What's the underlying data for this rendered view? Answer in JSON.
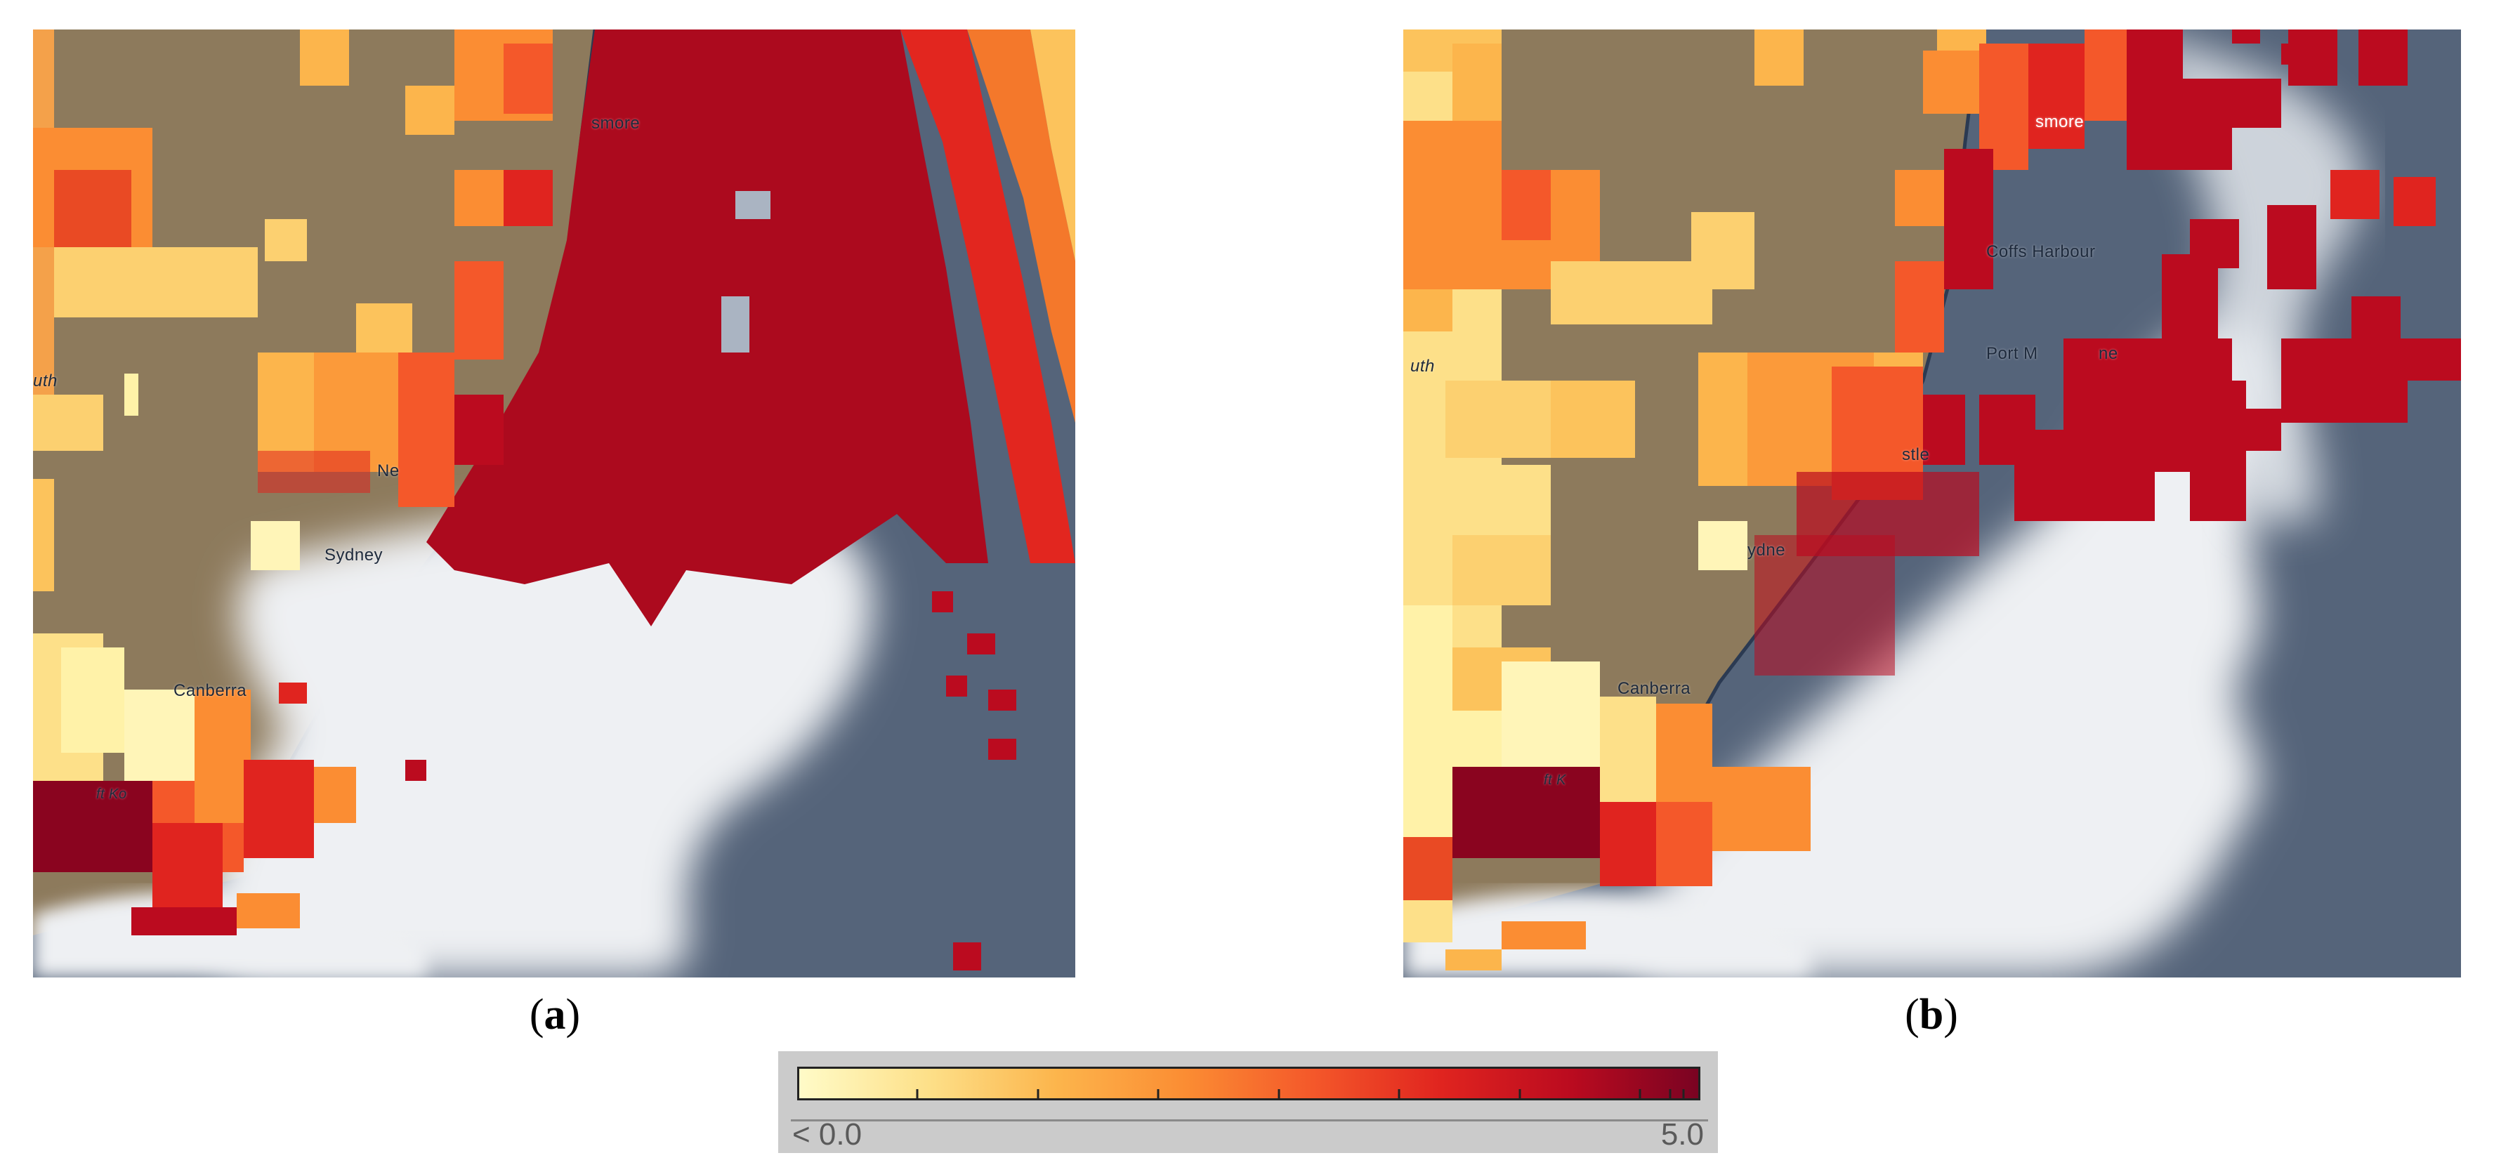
{
  "panels": [
    {
      "id": "a",
      "caption_open": "(",
      "caption_letter": "a",
      "caption_close": ")",
      "places": [
        "smore",
        "Sydney",
        "Canberra",
        "Ne",
        "uth",
        "ft Ko"
      ]
    },
    {
      "id": "b",
      "caption_open": "(",
      "caption_letter": "b",
      "caption_close": ")",
      "places": [
        "smore",
        "Coffs Harbour",
        "Port M",
        "ne",
        "stle",
        "ydne",
        "Canberra",
        "uth",
        "ft K"
      ]
    }
  ],
  "legend": {
    "min_label": "< 0.0",
    "max_label": "5.0",
    "colors": [
      "#fffbc8",
      "#fde089",
      "#fcb54c",
      "#fb8d33",
      "#f4582a",
      "#e0241f",
      "#bb0b1f",
      "#7a0322"
    ]
  },
  "colors": {
    "land": "#8d7a5c",
    "ocean": "#55647a",
    "cloud": "#eef0f3",
    "coast": "#2b3a52"
  }
}
